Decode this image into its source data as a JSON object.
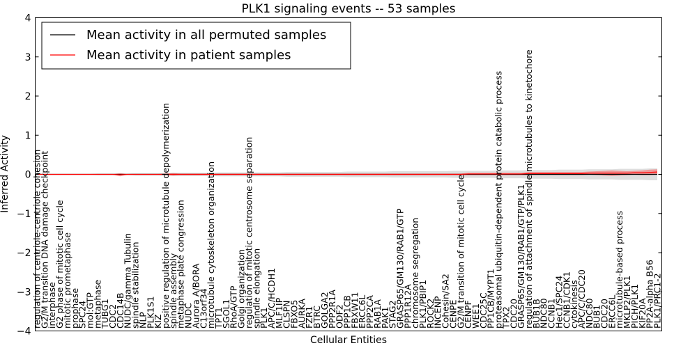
{
  "chart_data": {
    "type": "line",
    "title": "PLK1 signaling events -- 53 samples",
    "xlabel": "Cellular Entities",
    "ylabel": "Inferred Activity",
    "ylim": [
      -4,
      4
    ],
    "yticks": [
      -4,
      -3,
      -2,
      -1,
      0,
      1,
      2,
      3,
      4
    ],
    "legend_position": "top-left",
    "colors": {
      "permuted": "#000000",
      "patient": "#ff0000",
      "patient_band": "#f08080",
      "permuted_band": "#c8c8c8"
    },
    "categories": [
      "regulation of centriole-centriole cohesion",
      "G2/M transition DNA damage checkpoint",
      "interphase",
      "G2 phase of mitotic cell cycle",
      "mitotic prometaphase",
      "prophase",
      "SPC24",
      "mol:GTP",
      "metaphase",
      "TUBG1",
      "CDC2",
      "CDC14B",
      "NUDC/gamma Tubulin",
      "spindle stabilization",
      "NLP",
      "PLK1S1",
      "KIZ",
      "positive regulation of microtubule depolymerization",
      "spindle assembly",
      "metaphase plate congression",
      "NUDC",
      "Aurora A/BORA",
      "C13orf34",
      "microtubule cytoskeleton organization",
      "TPT1",
      "SGOL1",
      "RhoA/GTP",
      "Golgi organization",
      "regulation of mitotic centrosome separation",
      "spindle elongation",
      "PLK1",
      "APC/C/HCDH1",
      "MLF1IP",
      "CLSPN",
      "FBXO5",
      "AURKA",
      "FZR1",
      "BTRC",
      "GOLGA2",
      "PPP2R1A",
      "ODF2",
      "PPP1CB",
      "FBXW11",
      "ERCC6L",
      "PPP2CA",
      "RAB1A",
      "PAK1",
      "STAG2",
      "GRASP65/GM130/RAB1/GTP",
      "PPP1R12A",
      "chromosome segregation",
      "PLK1/PBIP1",
      "ROCK2",
      "INCENP",
      "Cohesin/SA2",
      "CENPE",
      "G2/M transition of mitotic cell cycle",
      "CENPF",
      "WEE1",
      "CDC25C",
      "PP1CB/MYPT1",
      "proteasomal ubiquitin-dependent protein catabolic process",
      "TPX2",
      "CDC20",
      "GRASP65/GM130/RAB1/GTP/PLK1",
      "regulation of attachment of spindle microtubules to kinetochore",
      "BUB1B",
      "NDC80",
      "CCNB1",
      "Hec1/SPC24",
      "CCNB1/CDK1",
      "cytokinesis",
      "APC/C/CDC20",
      "NDC80",
      "BUB1",
      "CDC20",
      "ERCC6L",
      "microtubule-based process",
      "MKLP2/PLK1",
      "PICH/PLK1",
      "KIF20A",
      "PP2A-alpha B56",
      "PLK1/PRC1-2"
    ],
    "series": [
      {
        "name": "Mean activity in all permuted samples",
        "values": [
          0.0,
          0.0,
          0.0,
          0.0,
          0.0,
          0.0,
          0.0,
          0.0,
          0.0,
          0.0,
          0.0,
          0.0,
          0.0,
          0.0,
          0.0,
          0.0,
          0.0,
          0.0,
          0.0,
          0.0,
          0.0,
          0.0,
          0.0,
          0.0,
          0.0,
          0.0,
          0.0,
          0.0,
          0.0,
          0.0,
          0.0,
          0.0,
          0.0,
          0.0,
          0.0,
          0.0,
          0.0,
          0.0,
          0.0,
          0.0,
          0.0,
          0.0,
          0.0,
          0.0,
          0.0,
          0.0,
          0.0,
          0.0,
          0.0,
          0.0,
          0.0,
          0.0,
          0.0,
          0.0,
          0.0,
          0.0,
          0.0,
          0.0,
          0.0,
          0.0,
          0.0,
          0.0,
          0.0,
          0.0,
          0.0,
          0.0,
          0.0,
          0.0,
          0.0,
          0.0,
          0.0,
          0.0,
          0.0,
          0.0,
          0.0,
          0.0,
          0.0,
          0.0,
          0.0,
          0.0,
          0.0,
          0.0,
          0.0
        ],
        "band": [
          0.01,
          0.01,
          0.01,
          0.01,
          0.01,
          0.01,
          0.01,
          0.01,
          0.02,
          0.02,
          0.02,
          0.02,
          0.02,
          0.03,
          0.03,
          0.03,
          0.03,
          0.03,
          0.04,
          0.04,
          0.04,
          0.04,
          0.04,
          0.04,
          0.05,
          0.05,
          0.05,
          0.05,
          0.05,
          0.05,
          0.05,
          0.05,
          0.05,
          0.06,
          0.06,
          0.06,
          0.06,
          0.06,
          0.06,
          0.06,
          0.06,
          0.07,
          0.07,
          0.07,
          0.07,
          0.07,
          0.07,
          0.08,
          0.08,
          0.08,
          0.08,
          0.08,
          0.08,
          0.08,
          0.08,
          0.09,
          0.09,
          0.09,
          0.09,
          0.09,
          0.09,
          0.1,
          0.1,
          0.1,
          0.1,
          0.11,
          0.11,
          0.11,
          0.11,
          0.12,
          0.12,
          0.12,
          0.12,
          0.13,
          0.13,
          0.13,
          0.13,
          0.14,
          0.14,
          0.14,
          0.14,
          0.15,
          0.15
        ]
      },
      {
        "name": "Mean activity in patient samples",
        "values": [
          0.0,
          0.0,
          0.0,
          0.0,
          0.0,
          0.0,
          0.0,
          0.0,
          0.0,
          0.0,
          0.0,
          -0.01,
          0.0,
          0.0,
          0.0,
          0.0,
          0.0,
          0.0,
          0.0,
          0.0,
          0.0,
          0.0,
          0.0,
          0.0,
          0.0,
          0.0,
          0.0,
          0.0,
          0.0,
          0.0,
          0.0,
          0.0,
          0.0,
          0.0,
          0.0,
          0.0,
          0.0,
          0.0,
          0.0,
          0.0,
          0.0,
          0.0,
          0.0,
          0.0,
          0.0,
          0.0,
          0.0,
          0.0,
          0.0,
          0.0,
          0.0,
          0.0,
          0.0,
          0.0,
          0.0,
          0.0,
          0.0,
          0.01,
          0.01,
          0.01,
          0.01,
          0.01,
          0.01,
          0.01,
          0.01,
          0.02,
          0.02,
          0.02,
          0.02,
          0.02,
          0.02,
          0.02,
          0.02,
          0.03,
          0.03,
          0.03,
          0.03,
          0.03,
          0.03,
          0.04,
          0.04,
          0.05,
          0.06
        ],
        "band": [
          0.01,
          0.01,
          0.01,
          0.01,
          0.01,
          0.01,
          0.01,
          0.01,
          0.01,
          0.01,
          0.01,
          0.04,
          0.01,
          0.01,
          0.01,
          0.01,
          0.01,
          0.02,
          0.03,
          0.02,
          0.02,
          0.02,
          0.02,
          0.02,
          0.02,
          0.02,
          0.02,
          0.02,
          0.02,
          0.02,
          0.02,
          0.02,
          0.02,
          0.02,
          0.02,
          0.02,
          0.02,
          0.02,
          0.02,
          0.02,
          0.02,
          0.02,
          0.02,
          0.02,
          0.02,
          0.02,
          0.02,
          0.02,
          0.02,
          0.02,
          0.02,
          0.02,
          0.02,
          0.02,
          0.02,
          0.02,
          0.02,
          0.03,
          0.03,
          0.03,
          0.03,
          0.03,
          0.03,
          0.03,
          0.03,
          0.04,
          0.04,
          0.04,
          0.04,
          0.04,
          0.04,
          0.04,
          0.04,
          0.04,
          0.05,
          0.06,
          0.07,
          0.06,
          0.05,
          0.05,
          0.06,
          0.07,
          0.07
        ]
      }
    ]
  }
}
